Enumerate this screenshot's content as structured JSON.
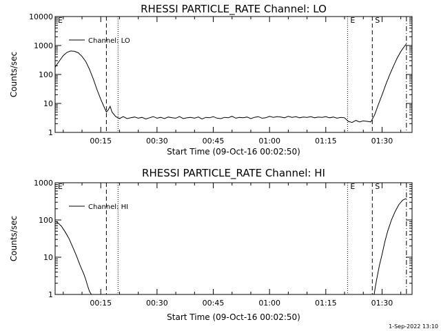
{
  "footer": "1-Sep-2022 13:10",
  "chart_data": [
    {
      "type": "line",
      "title": "RHESSI PARTICLE_RATE Channel: LO",
      "xlabel": "Start Time (09-Oct-16 00:02:50)",
      "ylabel": "Counts/sec",
      "yscale": "log",
      "ylim": [
        1,
        10000
      ],
      "y_ticks": [
        {
          "value": 1,
          "label": "1"
        },
        {
          "value": 10,
          "label": "10"
        },
        {
          "value": 100,
          "label": "100"
        },
        {
          "value": 1000,
          "label": "1000"
        },
        {
          "value": 10000,
          "label": "10000"
        }
      ],
      "xlim_minutes": [
        2.83,
        98.0
      ],
      "x_ticks": [
        {
          "minutes": 15,
          "label": "00:15"
        },
        {
          "minutes": 30,
          "label": "00:30"
        },
        {
          "minutes": 45,
          "label": "00:45"
        },
        {
          "minutes": 60,
          "label": "01:00"
        },
        {
          "minutes": 75,
          "label": "01:15"
        },
        {
          "minutes": 90,
          "label": "01:30"
        }
      ],
      "legend": {
        "label": "Channel: LO",
        "position": "top-left"
      },
      "grid": false,
      "markers": [
        {
          "minutes": 2.83,
          "label": "E",
          "style": "dotted"
        },
        {
          "minutes": 16.5,
          "label": "",
          "style": "dashed"
        },
        {
          "minutes": 19.6,
          "label": "",
          "style": "dotted"
        },
        {
          "minutes": 80.8,
          "label": "E",
          "style": "dotted"
        },
        {
          "minutes": 87.4,
          "label": "S",
          "style": "dashed"
        },
        {
          "minutes": 96.5,
          "label": "",
          "style": "dashdot"
        }
      ],
      "series": [
        {
          "x_minutes": [
            2.83,
            4,
            5,
            6,
            7,
            8,
            9,
            10,
            11,
            12,
            13,
            14,
            15,
            16,
            16.5,
            17,
            17.5,
            18,
            19,
            20,
            21,
            22,
            23,
            24,
            25,
            26,
            27,
            28,
            29,
            30,
            31,
            32,
            33,
            34,
            35,
            36,
            37,
            38,
            39,
            40,
            41,
            42,
            43,
            44,
            45,
            46,
            47,
            48,
            49,
            50,
            51,
            52,
            53,
            54,
            55,
            56,
            57,
            58,
            59,
            60,
            61,
            62,
            63,
            64,
            65,
            66,
            67,
            68,
            69,
            70,
            71,
            72,
            73,
            74,
            75,
            76,
            77,
            78,
            79,
            80,
            81,
            82,
            83,
            84,
            85,
            86,
            87,
            88,
            89,
            90,
            91,
            92,
            93,
            94,
            95,
            96,
            96.5
          ],
          "y": [
            180,
            300,
            450,
            580,
            650,
            630,
            560,
            420,
            280,
            150,
            70,
            30,
            14,
            7,
            5,
            6,
            8,
            5,
            3.5,
            3,
            3.5,
            3,
            3.2,
            3.4,
            3.1,
            3.3,
            2.9,
            3.2,
            3.5,
            3.1,
            3.3,
            3.0,
            3.4,
            3.2,
            3.1,
            3.5,
            3.0,
            3.2,
            3.3,
            3.1,
            3.4,
            2.9,
            3.3,
            3.2,
            3.5,
            3.1,
            3.0,
            3.3,
            3.2,
            3.6,
            3.1,
            3.3,
            3.2,
            3.4,
            3.0,
            3.3,
            3.5,
            3.1,
            3.2,
            3.6,
            3.3,
            3.5,
            3.4,
            3.2,
            3.6,
            3.3,
            3.5,
            3.2,
            3.4,
            3.3,
            3.5,
            3.2,
            3.4,
            3.3,
            3.5,
            3.2,
            3.4,
            3.1,
            3.3,
            3.2,
            2.4,
            2.2,
            2.6,
            2.3,
            2.5,
            2.4,
            2.3,
            4,
            9,
            20,
            45,
            95,
            190,
            360,
            620,
            950,
            1150
          ]
        }
      ]
    },
    {
      "type": "line",
      "title": "RHESSI PARTICLE_RATE Channel: HI",
      "xlabel": "Start Time (09-Oct-16 00:02:50)",
      "ylabel": "Counts/sec",
      "yscale": "log",
      "ylim": [
        1,
        1000
      ],
      "y_ticks": [
        {
          "value": 1,
          "label": "1"
        },
        {
          "value": 10,
          "label": "10"
        },
        {
          "value": 100,
          "label": "100"
        },
        {
          "value": 1000,
          "label": "1000"
        }
      ],
      "xlim_minutes": [
        2.83,
        98.0
      ],
      "x_ticks": [
        {
          "minutes": 15,
          "label": "00:15"
        },
        {
          "minutes": 30,
          "label": "00:30"
        },
        {
          "minutes": 45,
          "label": "00:45"
        },
        {
          "minutes": 60,
          "label": "01:00"
        },
        {
          "minutes": 75,
          "label": "01:15"
        },
        {
          "minutes": 90,
          "label": "01:30"
        }
      ],
      "legend": {
        "label": "Channel: HI",
        "position": "top-left"
      },
      "grid": false,
      "markers": [
        {
          "minutes": 2.83,
          "label": "E",
          "style": "dotted"
        },
        {
          "minutes": 16.5,
          "label": "",
          "style": "dashed"
        },
        {
          "minutes": 19.6,
          "label": "",
          "style": "dotted"
        },
        {
          "minutes": 80.8,
          "label": "E",
          "style": "dotted"
        },
        {
          "minutes": 87.4,
          "label": "S",
          "style": "dashed"
        },
        {
          "minutes": 96.5,
          "label": "",
          "style": "dashdot"
        }
      ],
      "series": [
        {
          "x_minutes": [
            2.83,
            3.5,
            4.5,
            5.5,
            6.5,
            7.5,
            8.5,
            9.5,
            10.5,
            11,
            11.5,
            12,
            12.5
          ],
          "y": [
            92,
            85,
            68,
            48,
            32,
            19,
            11,
            6,
            3.5,
            2.5,
            1.7,
            1.2,
            1.0
          ]
        },
        {
          "x_minutes": [
            87.9,
            88.2,
            88.7,
            89.3,
            90,
            90.7,
            91.5,
            92.5,
            93.5,
            94.5,
            95.5,
            96.5
          ],
          "y": [
            1.0,
            1.6,
            3,
            6,
            12,
            25,
            50,
            100,
            170,
            260,
            340,
            380
          ]
        }
      ]
    }
  ]
}
